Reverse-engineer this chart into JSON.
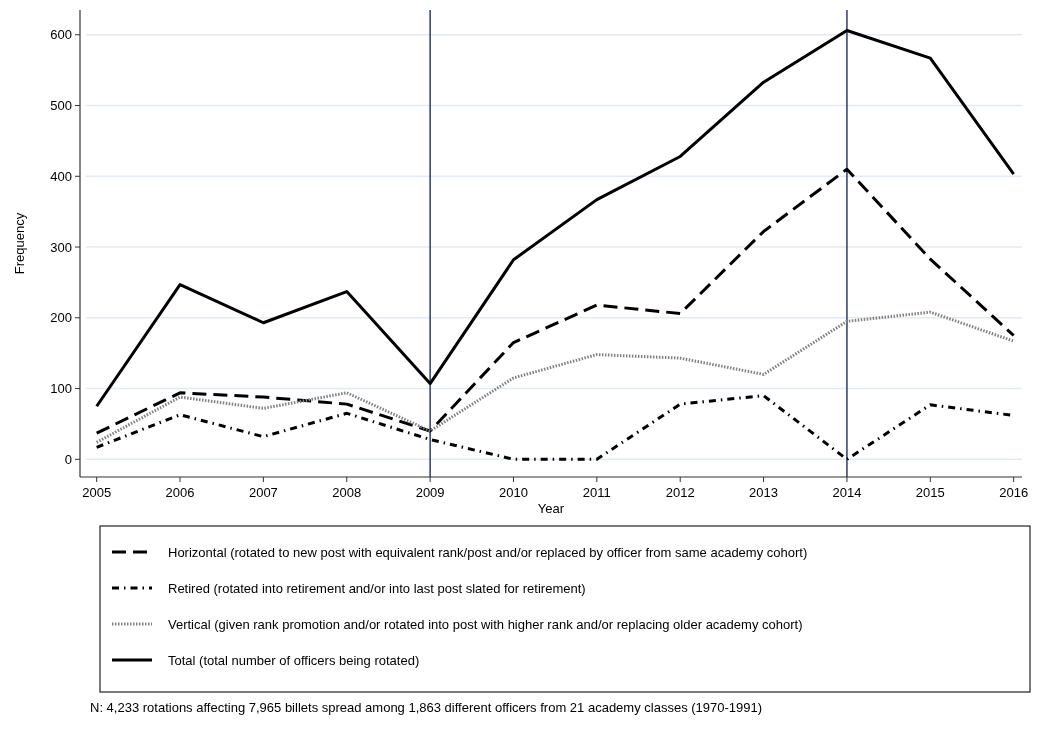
{
  "chart_data": {
    "type": "line",
    "xlabel": "Year",
    "ylabel": "Frequency",
    "x": [
      2005,
      2006,
      2007,
      2008,
      2009,
      2010,
      2011,
      2012,
      2013,
      2014,
      2015,
      2016
    ],
    "xlim": [
      2004.8,
      2016.1
    ],
    "xticks": [
      2005,
      2006,
      2007,
      2008,
      2009,
      2010,
      2011,
      2012,
      2013,
      2014,
      2015,
      2016
    ],
    "ylim": [
      -25,
      635
    ],
    "yticks": [
      0,
      100,
      200,
      300,
      400,
      500,
      600
    ],
    "grid": "y",
    "legend": "bottom",
    "marker": "none",
    "series": [
      {
        "name": "Horizontal (rotated to new post with equivalent rank/post and/or replaced by officer from same academy cohort)",
        "color": "#000000",
        "line_style": "dashed",
        "values": [
          37,
          94,
          88,
          78,
          40,
          165,
          218,
          206,
          322,
          410,
          283,
          175
        ]
      },
      {
        "name": "Retired (rotated into retirement and/or into last post slated for retirement)",
        "color": "#000000",
        "line_style": "dashdot",
        "values": [
          17,
          63,
          32,
          65,
          28,
          0,
          0,
          78,
          90,
          0,
          77,
          62
        ]
      },
      {
        "name": "Vertical (given rank promotion and/or rotated into post with higher rank and/or replacing older academy cohort)",
        "color": "#808080",
        "line_style": "dotted",
        "values": [
          24,
          88,
          72,
          94,
          40,
          115,
          148,
          143,
          120,
          195,
          208,
          167
        ]
      },
      {
        "name": "Total (total number of officers being rotated)",
        "color": "#000000",
        "line_style": "solid",
        "values": [
          75,
          247,
          193,
          237,
          107,
          282,
          367,
          428,
          533,
          606,
          567,
          403
        ]
      }
    ],
    "ref_lines": [
      {
        "axis": "x",
        "value": 2009,
        "color": "#2e3a6e"
      },
      {
        "axis": "x",
        "value": 2014,
        "color": "#2e3a6e"
      }
    ],
    "annotations": [
      "N: 4,233 rotations affecting 7,965 billets spread among 1,863 different officers from 21 academy classes (1970-1991)"
    ]
  }
}
